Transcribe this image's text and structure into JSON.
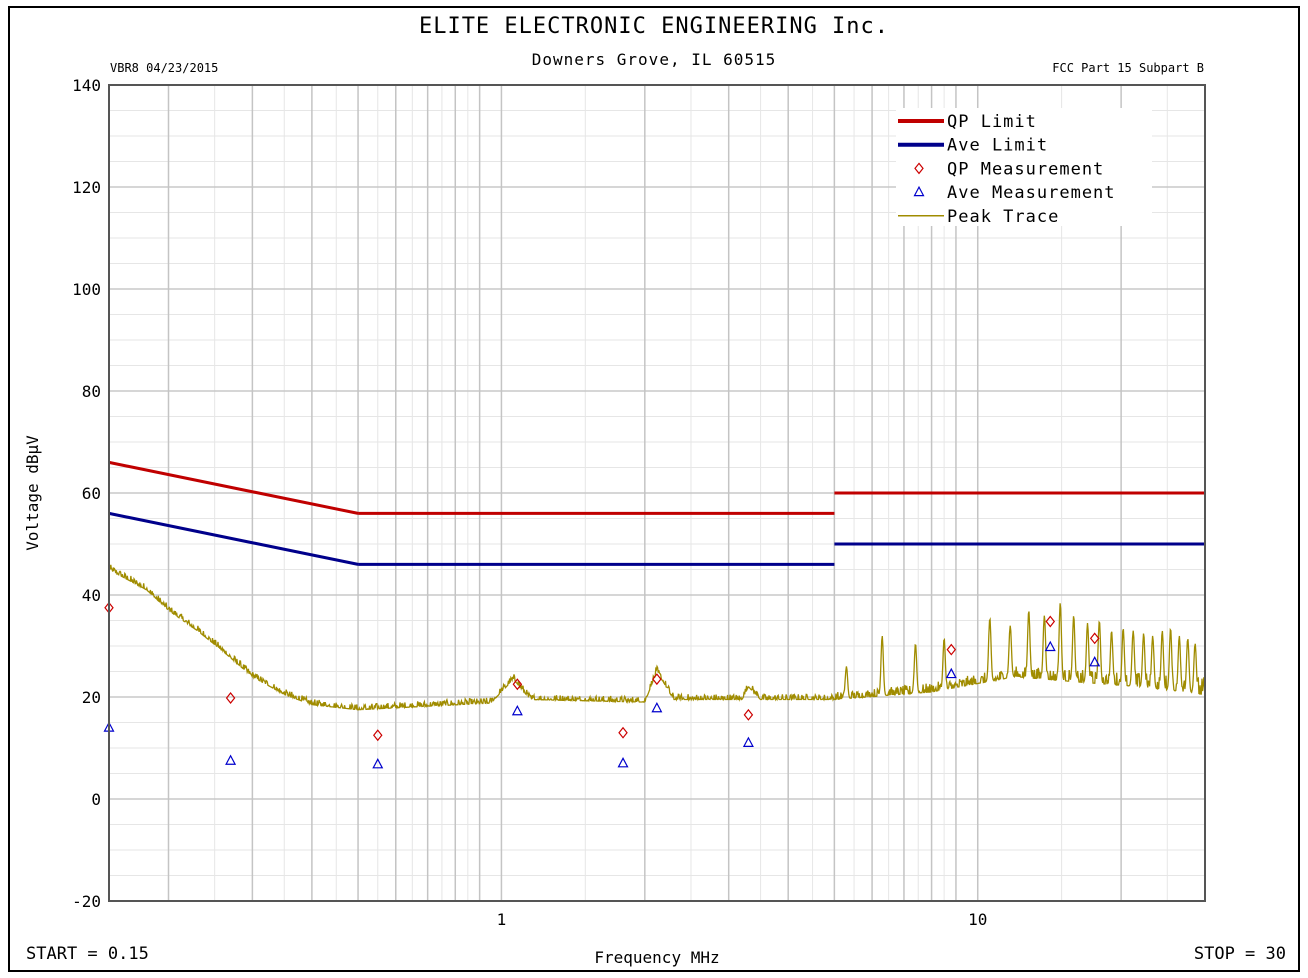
{
  "header": {
    "title": "ELITE ELECTRONIC ENGINEERING Inc.",
    "subtitle": "Downers Grove, IL 60515",
    "test_id": "VBR8  04/23/2015",
    "standard": "FCC Part 15 Subpart B",
    "start_label": "START = 0.15",
    "stop_label": "STOP = 30"
  },
  "chart_data": {
    "type": "line",
    "xlabel": "Frequency MHz",
    "ylabel": "Voltage dBµV",
    "xscale": "log",
    "xlim": [
      0.15,
      30
    ],
    "ylim": [
      -20,
      140
    ],
    "y_ticks": [
      -20,
      0,
      20,
      40,
      60,
      80,
      100,
      120,
      140
    ],
    "x_tick_labels": [
      {
        "value": 1,
        "label": "1"
      },
      {
        "value": 10,
        "label": "10"
      }
    ],
    "grid": true,
    "legend_position": "top-right",
    "series": [
      {
        "name": "QP Limit",
        "kind": "line",
        "color": "#c00000",
        "segments": [
          [
            [
              0.15,
              66
            ],
            [
              0.5,
              56
            ]
          ],
          [
            [
              0.5,
              56
            ],
            [
              5,
              56
            ]
          ],
          [
            [
              5,
              60
            ],
            [
              30,
              60
            ]
          ]
        ]
      },
      {
        "name": "Ave Limit",
        "kind": "line",
        "color": "#00008b",
        "segments": [
          [
            [
              0.15,
              56
            ],
            [
              0.5,
              46
            ]
          ],
          [
            [
              0.5,
              46
            ],
            [
              5,
              46
            ]
          ],
          [
            [
              5,
              50
            ],
            [
              30,
              50
            ]
          ]
        ]
      },
      {
        "name": "QP Measurement",
        "kind": "diamond",
        "color": "#cc0000",
        "points": [
          [
            0.15,
            37.5
          ],
          [
            0.27,
            19.8
          ],
          [
            0.55,
            12.5
          ],
          [
            1.08,
            22.5
          ],
          [
            1.8,
            13
          ],
          [
            2.12,
            23.5
          ],
          [
            3.3,
            16.5
          ],
          [
            8.8,
            29.3
          ],
          [
            14.2,
            34.8
          ],
          [
            17.6,
            31.5
          ]
        ]
      },
      {
        "name": "Ave Measurement",
        "kind": "triangle",
        "color": "#0000cc",
        "points": [
          [
            0.15,
            14
          ],
          [
            0.27,
            7.5
          ],
          [
            0.55,
            6.8
          ],
          [
            1.08,
            17.2
          ],
          [
            1.8,
            7
          ],
          [
            2.12,
            17.8
          ],
          [
            3.3,
            11
          ],
          [
            8.8,
            24.5
          ],
          [
            14.2,
            29.8
          ],
          [
            17.6,
            26.8
          ]
        ]
      },
      {
        "name": "Peak Trace",
        "kind": "trace",
        "color": "#a08c00",
        "envelope": [
          [
            0.15,
            45
          ],
          [
            0.18,
            41
          ],
          [
            0.2,
            37
          ],
          [
            0.23,
            33
          ],
          [
            0.26,
            29
          ],
          [
            0.3,
            24
          ],
          [
            0.35,
            20.5
          ],
          [
            0.4,
            18.5
          ],
          [
            0.5,
            17.5
          ],
          [
            0.7,
            18.2
          ],
          [
            0.95,
            18.8
          ],
          [
            1.06,
            23.5
          ],
          [
            1.15,
            19.5
          ],
          [
            2.0,
            19
          ],
          [
            2.12,
            25
          ],
          [
            2.3,
            19.5
          ],
          [
            3.2,
            19.5
          ],
          [
            3.3,
            22
          ],
          [
            3.5,
            19.5
          ],
          [
            5,
            19.5
          ],
          [
            8,
            21
          ],
          [
            12,
            24
          ],
          [
            16,
            23
          ],
          [
            22,
            22
          ],
          [
            30,
            20.5
          ]
        ],
        "spikes": [
          [
            5.3,
            26
          ],
          [
            6.3,
            32
          ],
          [
            7.4,
            30.5
          ],
          [
            8.5,
            31.5
          ],
          [
            10.6,
            35.5
          ],
          [
            11.7,
            34
          ],
          [
            12.8,
            37
          ],
          [
            13.8,
            36
          ],
          [
            14.9,
            38.5
          ],
          [
            15.9,
            36
          ],
          [
            17,
            34.5
          ],
          [
            18,
            35
          ],
          [
            19.1,
            33
          ],
          [
            20.2,
            33.5
          ],
          [
            21.2,
            33
          ],
          [
            22.3,
            32.5
          ],
          [
            23.3,
            32
          ],
          [
            24.4,
            33
          ],
          [
            25.4,
            33.5
          ],
          [
            26.5,
            32
          ],
          [
            27.6,
            31.5
          ],
          [
            28.6,
            30.5
          ]
        ]
      }
    ]
  }
}
